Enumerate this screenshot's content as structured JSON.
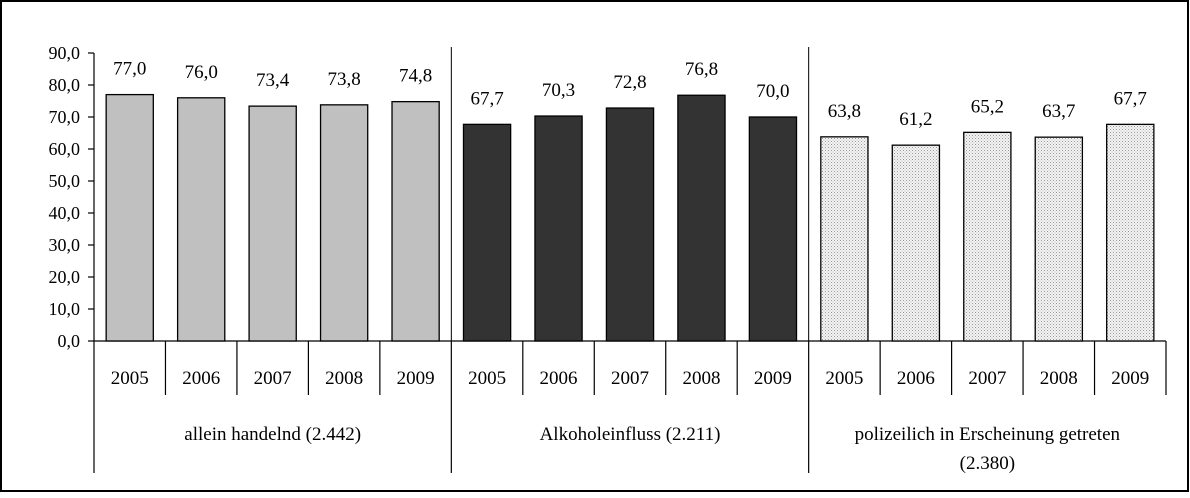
{
  "chart_data": {
    "type": "bar",
    "title": "",
    "xlabel": "",
    "ylabel": "",
    "ylim": [
      0,
      90
    ],
    "yticks": [
      "0,0",
      "10,0",
      "20,0",
      "30,0",
      "40,0",
      "50,0",
      "60,0",
      "70,0",
      "80,0",
      "90,0"
    ],
    "ytick_values": [
      0,
      10,
      20,
      30,
      40,
      50,
      60,
      70,
      80,
      90
    ],
    "grid": false,
    "legend": "none",
    "groups": [
      {
        "name": "allein handelnd (2.442)",
        "name_lines": [
          "allein handelnd (2.442)"
        ],
        "color": "#c0c0c0",
        "pattern": "solid",
        "categories": [
          "2005",
          "2006",
          "2007",
          "2008",
          "2009"
        ],
        "values": [
          77.0,
          76.0,
          73.4,
          73.8,
          74.8
        ],
        "labels": [
          "77,0",
          "76,0",
          "73,4",
          "73,8",
          "74,8"
        ]
      },
      {
        "name": "Alkoholeinfluss (2.211)",
        "name_lines": [
          "Alkoholeinfluss (2.211)"
        ],
        "color": "#333333",
        "pattern": "solid",
        "categories": [
          "2005",
          "2006",
          "2007",
          "2008",
          "2009"
        ],
        "values": [
          67.7,
          70.3,
          72.8,
          76.8,
          70.0
        ],
        "labels": [
          "67,7",
          "70,3",
          "72,8",
          "76,8",
          "70,0"
        ]
      },
      {
        "name": "polizeilich in Erscheinung getreten (2.380)",
        "name_lines": [
          "polizeilich in Erscheinung getreten",
          "(2.380)"
        ],
        "color": "#e8e8e8",
        "pattern": "dotted",
        "categories": [
          "2005",
          "2006",
          "2007",
          "2008",
          "2009"
        ],
        "values": [
          63.8,
          61.2,
          65.2,
          63.7,
          67.7
        ],
        "labels": [
          "63,8",
          "61,2",
          "65,2",
          "63,7",
          "67,7"
        ]
      }
    ]
  }
}
